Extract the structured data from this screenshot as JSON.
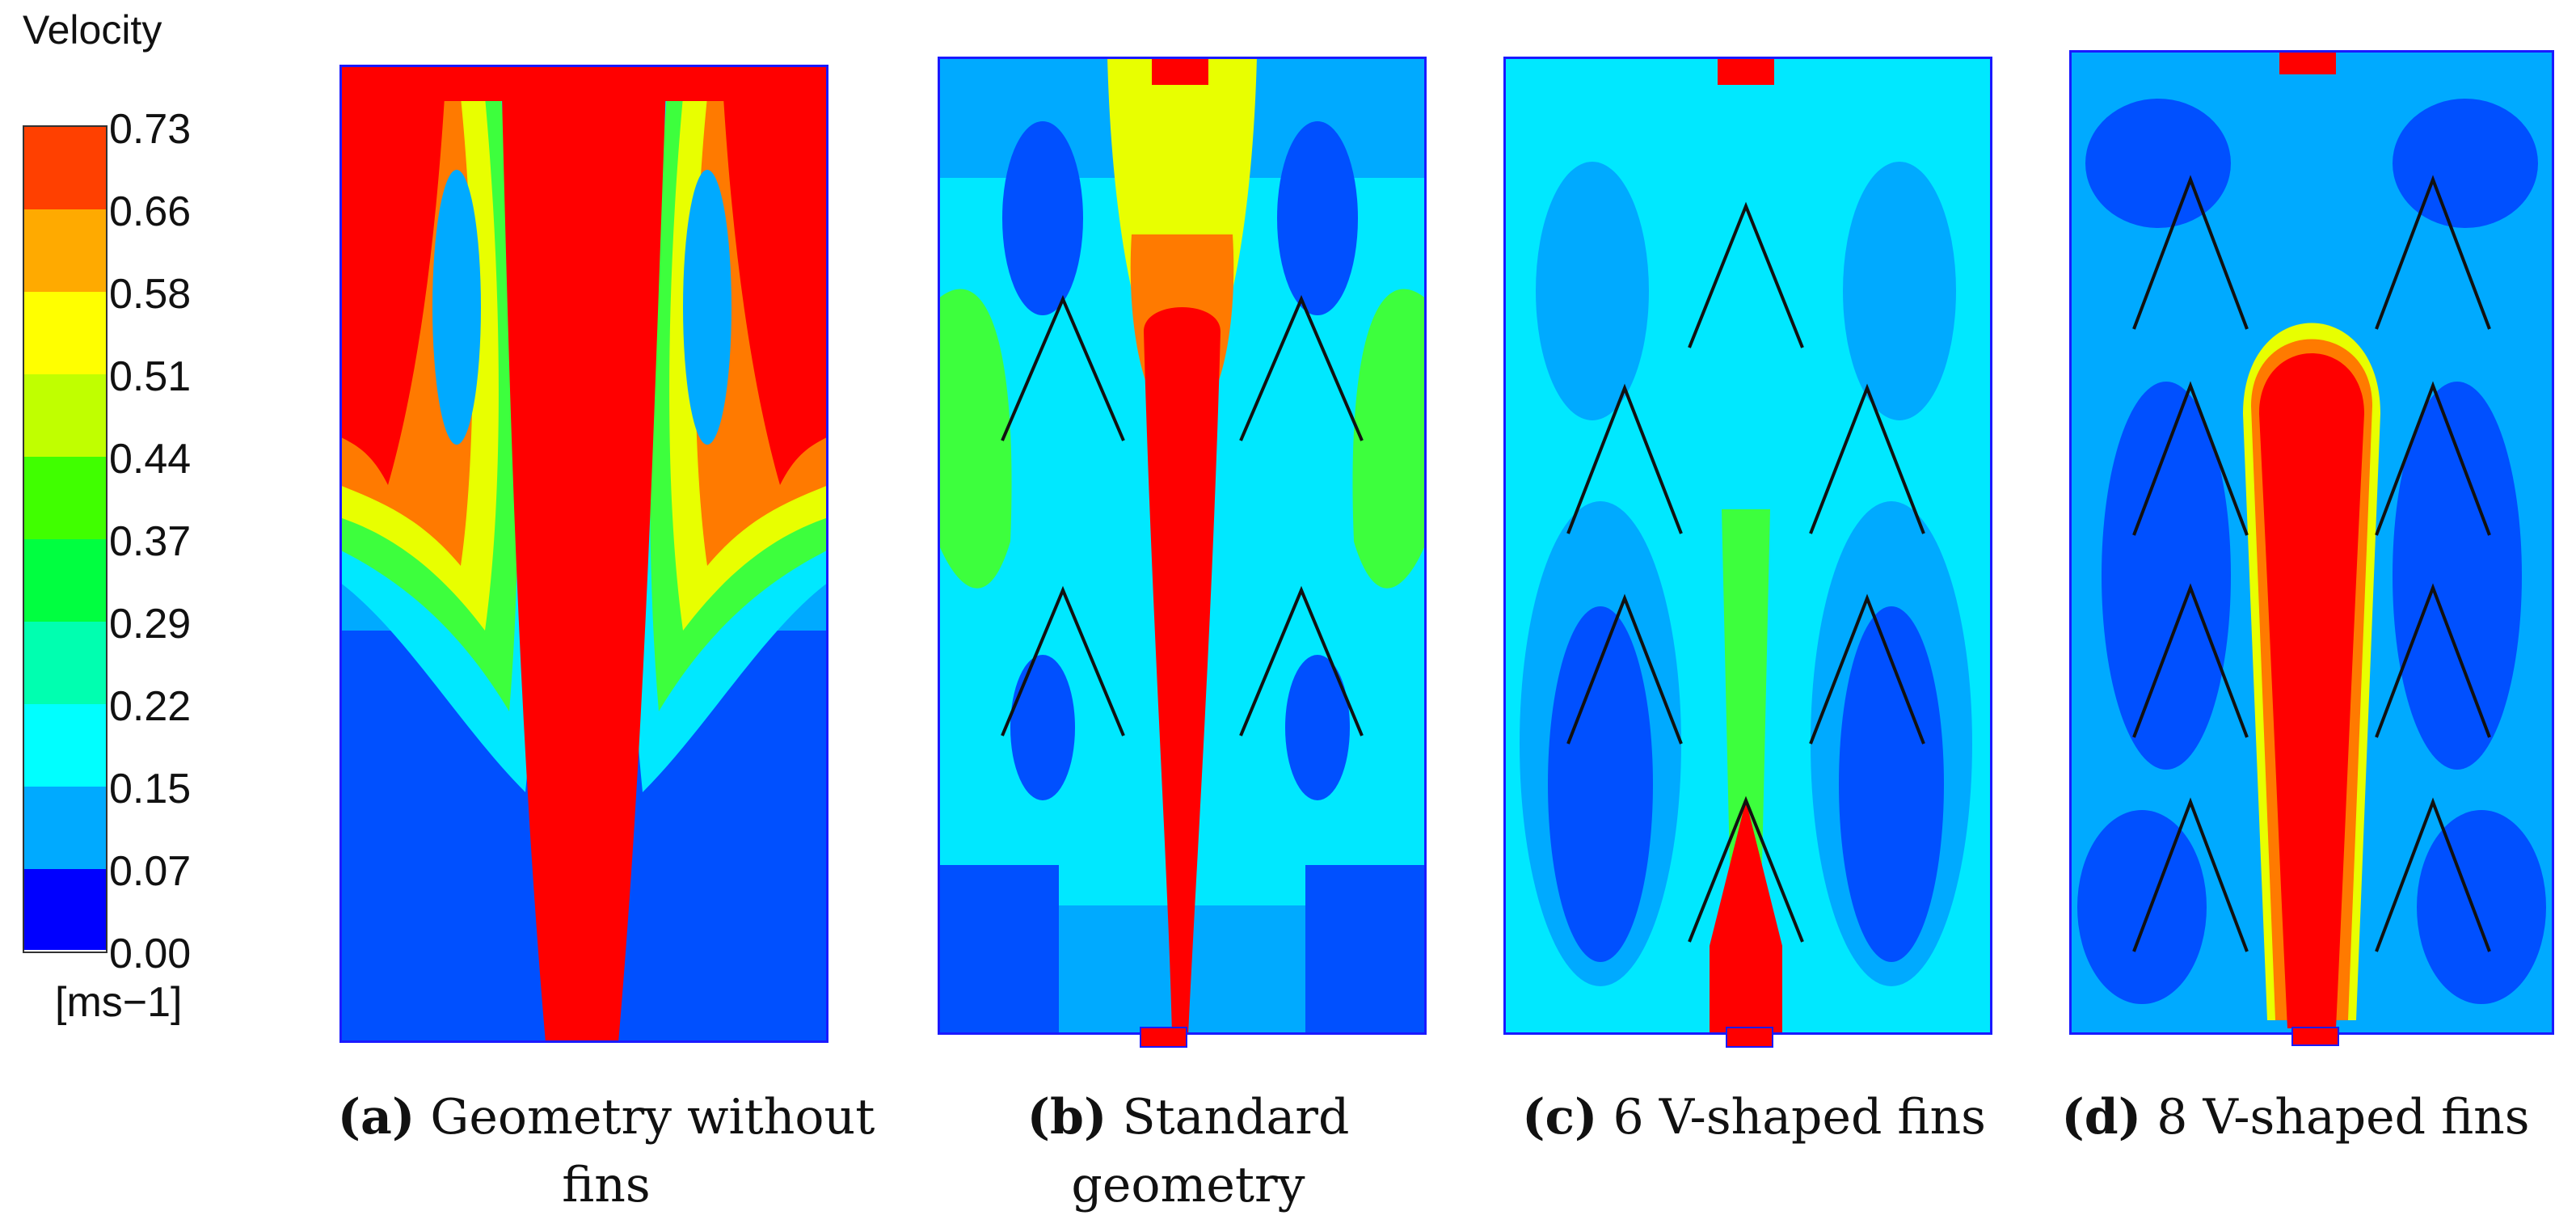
{
  "legend": {
    "title": "Velocity",
    "unit": "[ms−1]",
    "ticks": [
      "0.73",
      "0.66",
      "0.58",
      "0.51",
      "0.44",
      "0.37",
      "0.29",
      "0.22",
      "0.15",
      "0.07",
      "0.00"
    ],
    "colors": [
      "#ff4000",
      "#ffaa00",
      "#ffff00",
      "#c0ff00",
      "#40ff00",
      "#00ff40",
      "#00ffb0",
      "#00ffff",
      "#00aaff",
      "#0055ff",
      "#0000ff"
    ]
  },
  "panels": [
    {
      "label": "(a)",
      "caption": "Geometry without fins",
      "caption_line2": "fins"
    },
    {
      "label": "(b)",
      "caption": "Standard geometry"
    },
    {
      "label": "(c)",
      "caption": "6 V-shaped fins"
    },
    {
      "label": "(d)",
      "caption": "8 V-shaped fins"
    }
  ],
  "colors": {
    "high": "#ff0000",
    "orange": "#ff7a00",
    "yellow": "#e8ff00",
    "green": "#3dff3d",
    "teal": "#00ffb0",
    "cyan": "#00e8ff",
    "lightblue": "#00aaff",
    "blue": "#0050ff",
    "deep": "#0000ff",
    "fin": "#111111"
  }
}
